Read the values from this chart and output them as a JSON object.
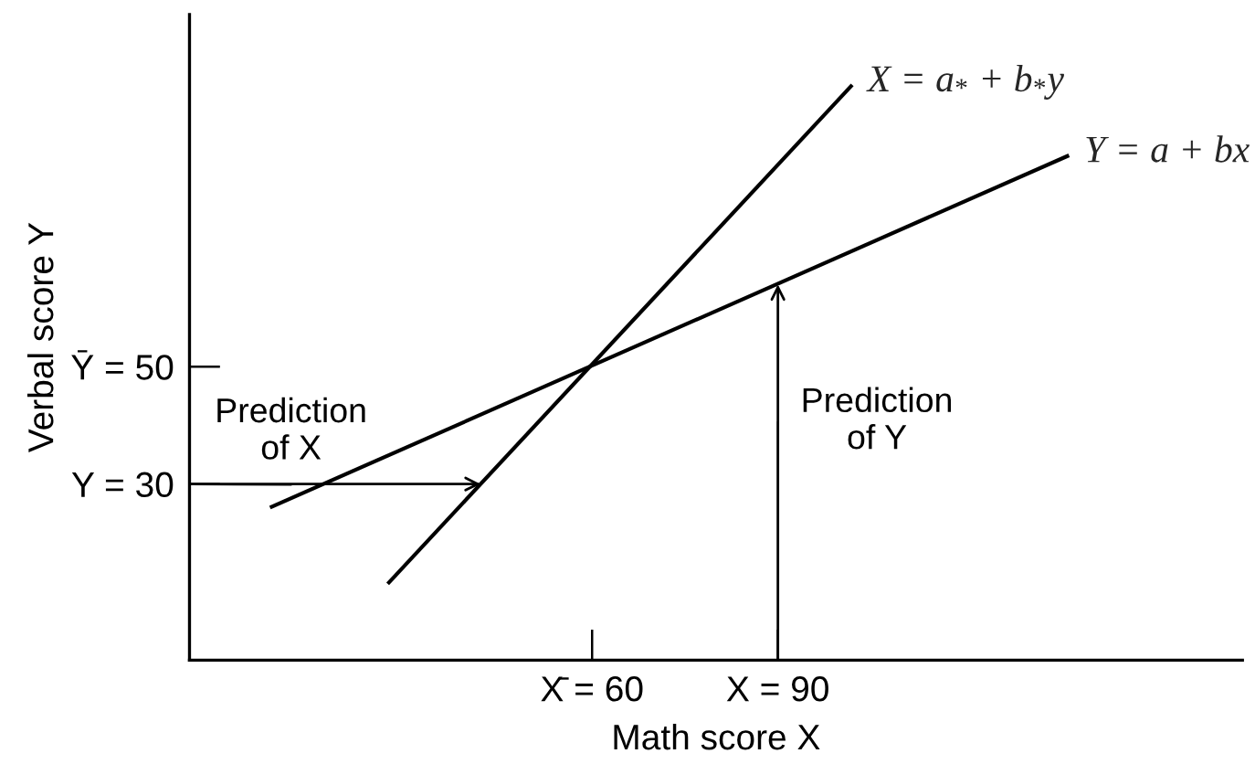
{
  "chart_data": {
    "type": "line",
    "xlabel": "Math score X",
    "ylabel": "Verbal score Y",
    "series": [
      {
        "name": "X = a$_{*}$ + b$_{*}$y",
        "color": "#000000",
        "x": [
          27,
          102
        ],
        "values": [
          13,
          98
        ]
      },
      {
        "name": "Y = a + bx",
        "color": "#000000",
        "x": [
          8,
          137
        ],
        "values": [
          26,
          86
        ]
      }
    ],
    "xlim": [
      -5,
      165
    ],
    "ylim": [
      0,
      110
    ],
    "xticks": [
      {
        "value": 60,
        "label": "X̄ = 60"
      },
      {
        "value": 90,
        "label": "X = 90"
      }
    ],
    "yticks": [
      {
        "value": 30,
        "label": "Y = 30"
      },
      {
        "value": 50,
        "label": "Ȳ = 50"
      }
    ],
    "annotations": [
      {
        "text": "Prediction of X",
        "x": 42,
        "y": 30
      },
      {
        "text": "Prediction of Y",
        "x": 90,
        "y": 64
      }
    ],
    "line_style": "solid"
  }
}
